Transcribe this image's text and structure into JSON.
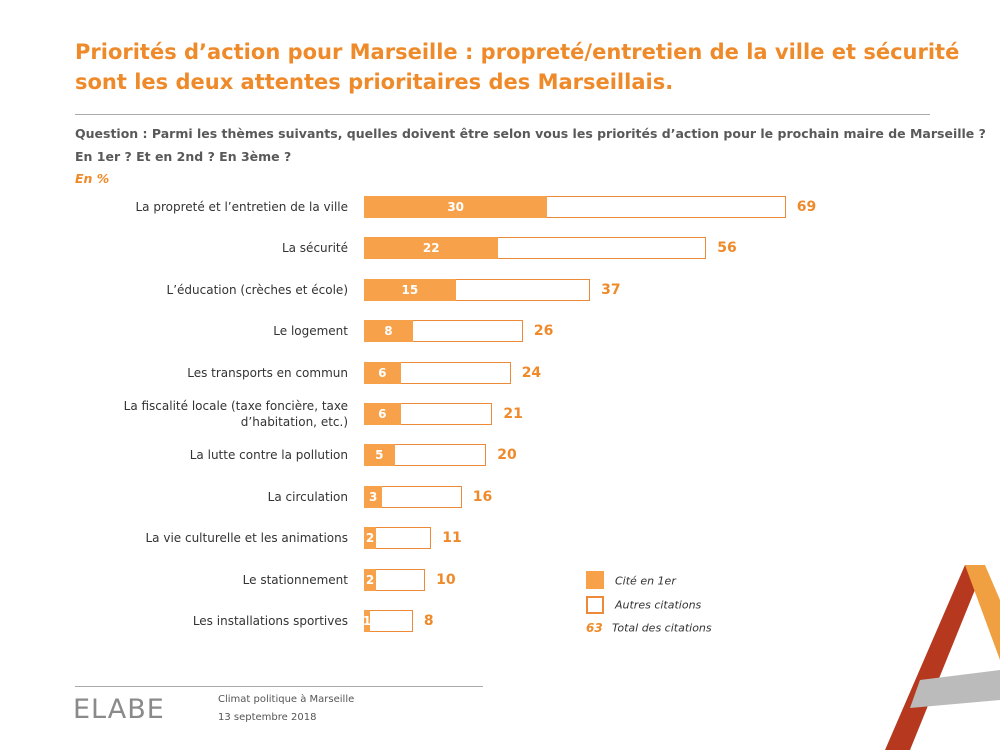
{
  "title": [
    "Priorités d’action pour Marseille : propreté/entretien de la ville et sécurité",
    "sont les deux attentes prioritaires des Marseillais."
  ],
  "question": [
    "Question : Parmi les thèmes suivants, quelles doivent être selon vous les priorités d’action pour le prochain maire de Marseille ?",
    "En 1er ? Et en 2nd ? En 3ème ?"
  ],
  "unit_note": "En %",
  "chart_data": {
    "type": "bar",
    "orientation": "horizontal",
    "categories": [
      "La propreté et l’entretien de la ville",
      "La sécurité",
      "L’éducation (crèches et école)",
      "Le logement",
      "Les transports en commun",
      "La fiscalité locale (taxe foncière, taxe d’habitation, etc.)",
      "La lutte contre la pollution",
      "La circulation",
      "La vie culturelle et les animations",
      "Le stationnement",
      "Les installations sportives"
    ],
    "series": [
      {
        "name": "Cité en 1er",
        "color": "#F7A24B",
        "values": [
          30,
          22,
          15,
          8,
          6,
          6,
          5,
          3,
          2,
          2,
          1
        ]
      },
      {
        "name": "Total des citations",
        "color": "#ED8A3A",
        "values": [
          69,
          56,
          37,
          26,
          24,
          21,
          20,
          16,
          11,
          10,
          8
        ]
      }
    ],
    "legend": {
      "other": "Autres citations",
      "example_value": 63
    },
    "xlim": [
      0,
      80
    ]
  },
  "footer": {
    "logo": "ELABE",
    "subject": "Climat politique à Marseille",
    "date": "13 septembre 2018"
  }
}
